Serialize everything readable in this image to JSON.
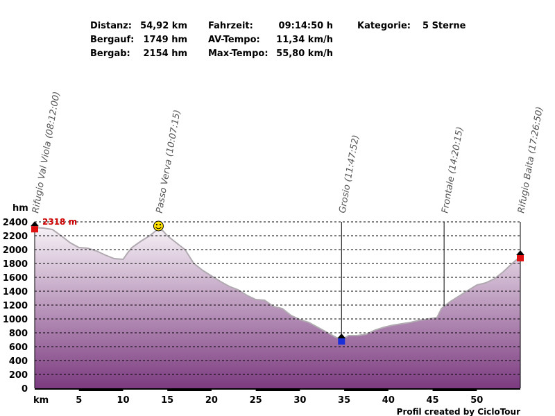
{
  "stats": {
    "distance_label": "Distanz:",
    "distance_value": "54,92 km",
    "ascent_label": "Bergauf:",
    "ascent_value": "1749 hm",
    "descent_label": "Bergab:",
    "descent_value": "2154 hm",
    "time_label": "Fahrzeit:",
    "time_value": "09:14:50 h",
    "avg_label": "AV-Tempo:",
    "avg_value": "11,34 km/h",
    "max_label": "Max-Tempo:",
    "max_value": "55,80 km/h",
    "category_label": "Kategorie:",
    "category_value": "5 Sterne"
  },
  "colors": {
    "fill_top": "#f6f1f6",
    "fill_bottom": "#7c3b80",
    "line": "#b0aab0",
    "max_label": "#cc0000",
    "start_marker": "#e01010",
    "end_marker": "#e01010",
    "min_marker": "#1a2fd8"
  },
  "chart_data": {
    "type": "area",
    "x_unit": "km",
    "y_unit": "hm",
    "xlim": [
      0,
      54.92
    ],
    "ylim": [
      0,
      2400
    ],
    "x_ticks": [
      5,
      10,
      15,
      20,
      25,
      30,
      35,
      40,
      45,
      50
    ],
    "y_ticks": [
      0,
      200,
      400,
      600,
      800,
      1000,
      1200,
      1400,
      1600,
      1800,
      2000,
      2200,
      2400
    ],
    "grid": true,
    "max_label": "2318 m",
    "footer": "Profil created by CicloTour",
    "waypoints": [
      {
        "km": 0,
        "label": "Rifugio Val Viola (08:12:00)",
        "marker": "start"
      },
      {
        "km": 14.0,
        "label": "Passo Verva (10:07:15)",
        "marker": "smiley"
      },
      {
        "km": 34.7,
        "label": "Grosio (11:47:52)",
        "marker": "min"
      },
      {
        "km": 46.3,
        "label": "Frontale (14:20:15)",
        "marker": "none"
      },
      {
        "km": 54.92,
        "label": "Rifugio Baita (17:26:50)",
        "marker": "end"
      }
    ],
    "profile": [
      [
        0,
        2318
      ],
      [
        1,
        2310
      ],
      [
        2,
        2290
      ],
      [
        3,
        2200
      ],
      [
        4,
        2100
      ],
      [
        5,
        2030
      ],
      [
        6,
        2020
      ],
      [
        7,
        1980
      ],
      [
        8,
        1920
      ],
      [
        9,
        1870
      ],
      [
        10,
        1860
      ],
      [
        10.5,
        1950
      ],
      [
        11,
        2030
      ],
      [
        12,
        2120
      ],
      [
        13,
        2200
      ],
      [
        13.6,
        2260
      ],
      [
        14,
        2300
      ],
      [
        14.5,
        2270
      ],
      [
        15,
        2200
      ],
      [
        16,
        2100
      ],
      [
        17,
        2000
      ],
      [
        18,
        1800
      ],
      [
        19,
        1700
      ],
      [
        20,
        1620
      ],
      [
        21,
        1540
      ],
      [
        22,
        1470
      ],
      [
        23,
        1420
      ],
      [
        24,
        1340
      ],
      [
        25,
        1280
      ],
      [
        26,
        1270
      ],
      [
        27,
        1180
      ],
      [
        28,
        1150
      ],
      [
        29,
        1050
      ],
      [
        30,
        990
      ],
      [
        31,
        950
      ],
      [
        32,
        880
      ],
      [
        33,
        810
      ],
      [
        34,
        740
      ],
      [
        34.7,
        700
      ],
      [
        35.5,
        760
      ],
      [
        36.5,
        760
      ],
      [
        37.5,
        780
      ],
      [
        38.5,
        840
      ],
      [
        39.5,
        880
      ],
      [
        40.5,
        910
      ],
      [
        41.5,
        930
      ],
      [
        42.5,
        950
      ],
      [
        43.5,
        980
      ],
      [
        44.5,
        1000
      ],
      [
        45.5,
        1020
      ],
      [
        46,
        1150
      ],
      [
        47,
        1250
      ],
      [
        48,
        1330
      ],
      [
        49,
        1410
      ],
      [
        50,
        1490
      ],
      [
        51,
        1520
      ],
      [
        52,
        1580
      ],
      [
        53,
        1680
      ],
      [
        54,
        1800
      ],
      [
        54.92,
        1900
      ]
    ]
  }
}
